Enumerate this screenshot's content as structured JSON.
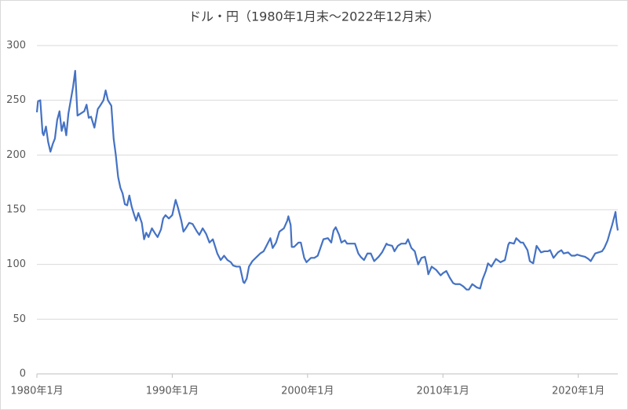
{
  "chart_data": {
    "type": "line",
    "title": "ドル・円（1980年1月末～2022年12月末）",
    "x": [
      1980.0,
      1980.08,
      1980.25,
      1980.42,
      1980.5,
      1980.67,
      1980.83,
      1981.0,
      1981.17,
      1981.33,
      1981.5,
      1981.67,
      1981.83,
      1982.0,
      1982.17,
      1982.33,
      1982.5,
      1982.67,
      1982.83,
      1983.0,
      1983.25,
      1983.5,
      1983.67,
      1983.83,
      1984.0,
      1984.25,
      1984.5,
      1984.67,
      1984.92,
      1985.08,
      1985.25,
      1985.5,
      1985.67,
      1985.83,
      1986.0,
      1986.17,
      1986.33,
      1986.5,
      1986.67,
      1986.83,
      1987.0,
      1987.17,
      1987.33,
      1987.5,
      1987.75,
      1987.92,
      1988.08,
      1988.25,
      1988.5,
      1988.75,
      1988.92,
      1989.17,
      1989.33,
      1989.5,
      1989.75,
      1990.0,
      1990.25,
      1990.42,
      1990.67,
      1990.83,
      1991.0,
      1991.25,
      1991.5,
      1991.83,
      1992.0,
      1992.25,
      1992.5,
      1992.75,
      1993.0,
      1993.33,
      1993.58,
      1993.83,
      1994.08,
      1994.33,
      1994.5,
      1994.75,
      1995.0,
      1995.25,
      1995.33,
      1995.5,
      1995.67,
      1995.92,
      1996.25,
      1996.5,
      1996.75,
      1996.92,
      1997.25,
      1997.42,
      1997.67,
      1997.92,
      1998.25,
      1998.5,
      1998.58,
      1998.75,
      1998.83,
      1999.0,
      1999.33,
      1999.5,
      1999.75,
      1999.92,
      2000.25,
      2000.5,
      2000.75,
      2000.92,
      2001.17,
      2001.5,
      2001.75,
      2001.92,
      2002.08,
      2002.33,
      2002.5,
      2002.75,
      2002.92,
      2003.25,
      2003.5,
      2003.75,
      2003.92,
      2004.17,
      2004.42,
      2004.67,
      2004.92,
      2005.25,
      2005.5,
      2005.83,
      2005.92,
      2006.25,
      2006.42,
      2006.67,
      2006.92,
      2007.25,
      2007.42,
      2007.67,
      2007.92,
      2008.17,
      2008.42,
      2008.67,
      2008.83,
      2008.92,
      2009.17,
      2009.5,
      2009.83,
      2010.0,
      2010.25,
      2010.5,
      2010.75,
      2010.92,
      2011.25,
      2011.5,
      2011.75,
      2011.92,
      2012.17,
      2012.5,
      2012.75,
      2012.92,
      2013.17,
      2013.33,
      2013.58,
      2013.92,
      2014.25,
      2014.58,
      2014.83,
      2014.92,
      2015.25,
      2015.42,
      2015.75,
      2015.92,
      2016.25,
      2016.42,
      2016.67,
      2016.92,
      2017.25,
      2017.5,
      2017.75,
      2017.92,
      2018.17,
      2018.5,
      2018.75,
      2018.92,
      2019.25,
      2019.5,
      2019.75,
      2019.92,
      2020.17,
      2020.5,
      2020.75,
      2020.92,
      2021.25,
      2021.5,
      2021.75,
      2021.92,
      2022.17,
      2022.33,
      2022.5,
      2022.67,
      2022.75,
      2022.83,
      2022.92
    ],
    "values": [
      239,
      249,
      250,
      220,
      218,
      226,
      212,
      203,
      210,
      215,
      232,
      240,
      222,
      230,
      218,
      238,
      250,
      262,
      277,
      236,
      238,
      240,
      246,
      234,
      235,
      225,
      242,
      245,
      250,
      259,
      250,
      245,
      215,
      200,
      180,
      170,
      165,
      155,
      154,
      163,
      153,
      146,
      140,
      147,
      138,
      123,
      129,
      125,
      133,
      128,
      125,
      132,
      142,
      145,
      142,
      145,
      159,
      152,
      140,
      130,
      133,
      138,
      137,
      130,
      127,
      133,
      128,
      120,
      123,
      110,
      104,
      108,
      104,
      102,
      99,
      98,
      98,
      84,
      83,
      87,
      98,
      103,
      107,
      110,
      112,
      116,
      124,
      115,
      120,
      130,
      133,
      140,
      144,
      136,
      116,
      116,
      120,
      120,
      106,
      102,
      106,
      106,
      108,
      114,
      123,
      124,
      120,
      131,
      134,
      127,
      120,
      122,
      119,
      119,
      119,
      110,
      107,
      104,
      110,
      110,
      103,
      107,
      111,
      119,
      118,
      117,
      112,
      117,
      119,
      119,
      123,
      115,
      112,
      100,
      106,
      107,
      98,
      91,
      98,
      95,
      90,
      92,
      94,
      88,
      83,
      82,
      82,
      80,
      77,
      77,
      82,
      79,
      78,
      86,
      94,
      101,
      98,
      105,
      102,
      104,
      118,
      120,
      119,
      124,
      120,
      120,
      113,
      103,
      101,
      117,
      111,
      112,
      112,
      113,
      106,
      111,
      113,
      110,
      111,
      108,
      108,
      109,
      108,
      107,
      105,
      103,
      110,
      111,
      112,
      115,
      122,
      129,
      136,
      144,
      148,
      138,
      131
    ],
    "color": "#4472c4",
    "xlim": [
      1980,
      2022.92
    ],
    "xticks": [
      {
        "value": 1980,
        "label": "1980年1月"
      },
      {
        "value": 1990,
        "label": "1990年1月"
      },
      {
        "value": 2000,
        "label": "2000年1月"
      },
      {
        "value": 2010,
        "label": "2010年1月"
      },
      {
        "value": 2020,
        "label": "2020年1月"
      }
    ],
    "ylim": [
      0,
      300
    ],
    "yticks": [
      0,
      50,
      100,
      150,
      200,
      250,
      300
    ],
    "grid": true
  }
}
